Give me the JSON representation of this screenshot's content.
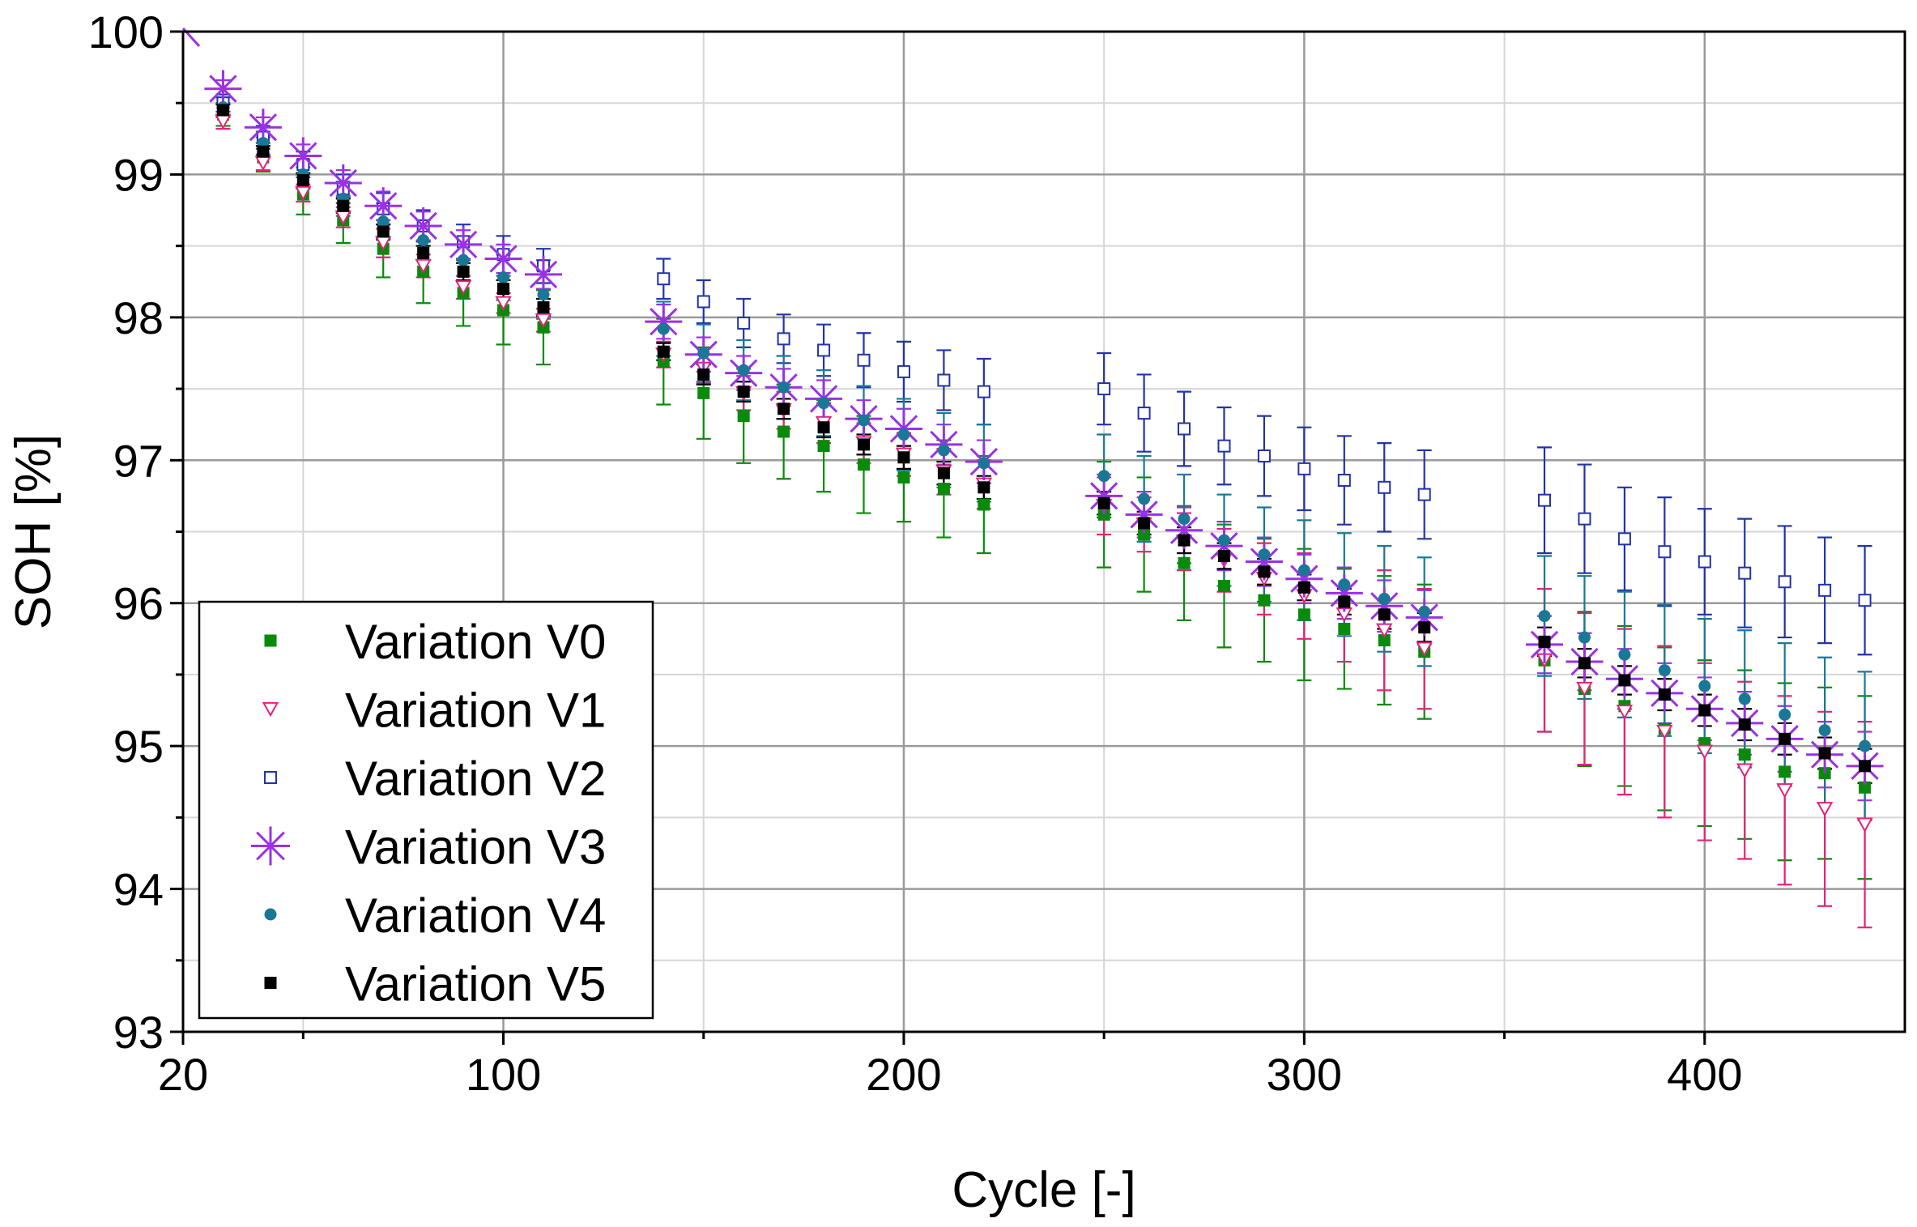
{
  "chart_data": {
    "type": "scatter",
    "title": "",
    "xlabel": "Cycle [-]",
    "ylabel": "SOH [%]",
    "xlim": [
      20,
      450
    ],
    "ylim": [
      93,
      100
    ],
    "xticks": [
      20,
      100,
      200,
      300,
      400
    ],
    "yticks": [
      93,
      94,
      95,
      96,
      97,
      98,
      99,
      100
    ],
    "grid": true,
    "legend_position": "bottom-left",
    "x": [
      30,
      40,
      50,
      60,
      70,
      80,
      90,
      100,
      110,
      140,
      150,
      160,
      170,
      180,
      190,
      200,
      210,
      220,
      250,
      260,
      270,
      280,
      290,
      300,
      310,
      320,
      330,
      360,
      370,
      380,
      390,
      400,
      410,
      420,
      430,
      440
    ],
    "series": [
      {
        "name": "Variation V0",
        "marker": "filled-square",
        "color": "#0a8a0a",
        "values": [
          99.42,
          99.12,
          98.86,
          98.68,
          98.48,
          98.32,
          98.17,
          98.05,
          97.93,
          97.69,
          97.47,
          97.31,
          97.2,
          97.1,
          96.97,
          96.88,
          96.8,
          96.69,
          96.62,
          96.48,
          96.28,
          96.12,
          96.02,
          95.92,
          95.82,
          95.74,
          95.66,
          95.6,
          95.4,
          95.28,
          95.12,
          95.02,
          94.94,
          94.82,
          94.81,
          94.71
        ],
        "errors": [
          0.08,
          0.1,
          0.14,
          0.16,
          0.2,
          0.22,
          0.23,
          0.24,
          0.26,
          0.3,
          0.32,
          0.33,
          0.33,
          0.32,
          0.34,
          0.31,
          0.34,
          0.34,
          0.37,
          0.4,
          0.4,
          0.43,
          0.43,
          0.46,
          0.42,
          0.45,
          0.47,
          0.5,
          0.54,
          0.56,
          0.57,
          0.58,
          0.59,
          0.62,
          0.6,
          0.64
        ]
      },
      {
        "name": "Variation V1",
        "marker": "open-triangle-down",
        "color": "#e8207a",
        "values": [
          99.37,
          99.08,
          98.87,
          98.7,
          98.52,
          98.36,
          98.21,
          98.1,
          97.98,
          97.74,
          97.64,
          97.47,
          97.35,
          97.26,
          97.12,
          97.04,
          96.92,
          96.83,
          96.68,
          96.55,
          96.43,
          96.3,
          96.17,
          96.05,
          95.92,
          95.81,
          95.68,
          95.6,
          95.4,
          95.24,
          95.1,
          94.96,
          94.83,
          94.69,
          94.56,
          94.45
        ],
        "errors": [
          0.05,
          0.05,
          0.06,
          0.07,
          0.1,
          0.08,
          0.08,
          0.07,
          0.08,
          0.09,
          0.1,
          0.12,
          0.13,
          0.14,
          0.14,
          0.15,
          0.16,
          0.17,
          0.2,
          0.19,
          0.2,
          0.22,
          0.25,
          0.3,
          0.33,
          0.42,
          0.42,
          0.5,
          0.53,
          0.58,
          0.6,
          0.62,
          0.62,
          0.66,
          0.68,
          0.72
        ]
      },
      {
        "name": "Variation V2",
        "marker": "open-square",
        "color": "#2233aa",
        "values": [
          99.5,
          99.26,
          99.07,
          98.9,
          98.76,
          98.64,
          98.53,
          98.44,
          98.36,
          98.27,
          98.11,
          97.96,
          97.85,
          97.77,
          97.7,
          97.62,
          97.56,
          97.48,
          97.5,
          97.33,
          97.22,
          97.1,
          97.03,
          96.94,
          96.86,
          96.81,
          96.76,
          96.72,
          96.59,
          96.45,
          96.36,
          96.29,
          96.21,
          96.15,
          96.09,
          96.02
        ],
        "errors": [
          0.06,
          0.08,
          0.09,
          0.1,
          0.11,
          0.11,
          0.12,
          0.13,
          0.12,
          0.14,
          0.15,
          0.17,
          0.17,
          0.18,
          0.19,
          0.21,
          0.21,
          0.23,
          0.25,
          0.27,
          0.26,
          0.27,
          0.28,
          0.29,
          0.31,
          0.31,
          0.31,
          0.37,
          0.38,
          0.36,
          0.38,
          0.37,
          0.38,
          0.39,
          0.37,
          0.38
        ]
      },
      {
        "name": "Variation V3",
        "marker": "asterisk",
        "color": "#9b30e6",
        "values": [
          99.6,
          99.33,
          99.13,
          98.94,
          98.78,
          98.64,
          98.51,
          98.41,
          98.3,
          97.97,
          97.74,
          97.61,
          97.51,
          97.43,
          97.29,
          97.22,
          97.11,
          96.99,
          96.75,
          96.62,
          96.51,
          96.4,
          96.29,
          96.17,
          96.07,
          95.98,
          95.9,
          95.71,
          95.59,
          95.47,
          95.37,
          95.26,
          95.16,
          95.05,
          94.94,
          94.86
        ],
        "errors": [
          0.06,
          0.07,
          0.08,
          0.09,
          0.1,
          0.1,
          0.1,
          0.1,
          0.1,
          0.12,
          0.12,
          0.12,
          0.13,
          0.13,
          0.13,
          0.14,
          0.14,
          0.15,
          0.15,
          0.16,
          0.16,
          0.17,
          0.17,
          0.17,
          0.18,
          0.18,
          0.19,
          0.2,
          0.2,
          0.21,
          0.21,
          0.22,
          0.22,
          0.23,
          0.23,
          0.24
        ]
      },
      {
        "name": "Variation V4",
        "marker": "filled-circle",
        "color": "#1a7896",
        "values": [
          99.47,
          99.22,
          99.0,
          98.83,
          98.67,
          98.54,
          98.4,
          98.28,
          98.16,
          97.92,
          97.75,
          97.63,
          97.51,
          97.4,
          97.28,
          97.18,
          97.07,
          96.98,
          96.89,
          96.73,
          96.59,
          96.44,
          96.34,
          96.23,
          96.13,
          96.03,
          95.94,
          95.91,
          95.76,
          95.64,
          95.53,
          95.42,
          95.33,
          95.22,
          95.11,
          95.0
        ],
        "errors": [
          0.07,
          0.08,
          0.1,
          0.12,
          0.13,
          0.14,
          0.15,
          0.16,
          0.17,
          0.19,
          0.2,
          0.21,
          0.22,
          0.23,
          0.24,
          0.25,
          0.26,
          0.27,
          0.29,
          0.3,
          0.31,
          0.32,
          0.33,
          0.35,
          0.36,
          0.37,
          0.38,
          0.42,
          0.43,
          0.44,
          0.46,
          0.47,
          0.48,
          0.5,
          0.51,
          0.52
        ]
      },
      {
        "name": "Variation V5",
        "marker": "filled-square",
        "color": "#000000",
        "values": [
          99.45,
          99.16,
          98.96,
          98.78,
          98.6,
          98.45,
          98.32,
          98.2,
          98.07,
          97.76,
          97.6,
          97.48,
          97.36,
          97.23,
          97.11,
          97.02,
          96.91,
          96.81,
          96.7,
          96.56,
          96.44,
          96.33,
          96.22,
          96.11,
          96.01,
          95.92,
          95.83,
          95.73,
          95.58,
          95.46,
          95.36,
          95.25,
          95.15,
          95.05,
          94.95,
          94.86
        ],
        "errors": [
          0.04,
          0.04,
          0.05,
          0.05,
          0.05,
          0.05,
          0.06,
          0.06,
          0.06,
          0.06,
          0.07,
          0.07,
          0.07,
          0.07,
          0.07,
          0.08,
          0.08,
          0.08,
          0.08,
          0.08,
          0.09,
          0.09,
          0.09,
          0.09,
          0.09,
          0.1,
          0.1,
          0.1,
          0.1,
          0.1,
          0.11,
          0.11,
          0.11,
          0.11,
          0.11,
          0.12
        ]
      }
    ]
  }
}
